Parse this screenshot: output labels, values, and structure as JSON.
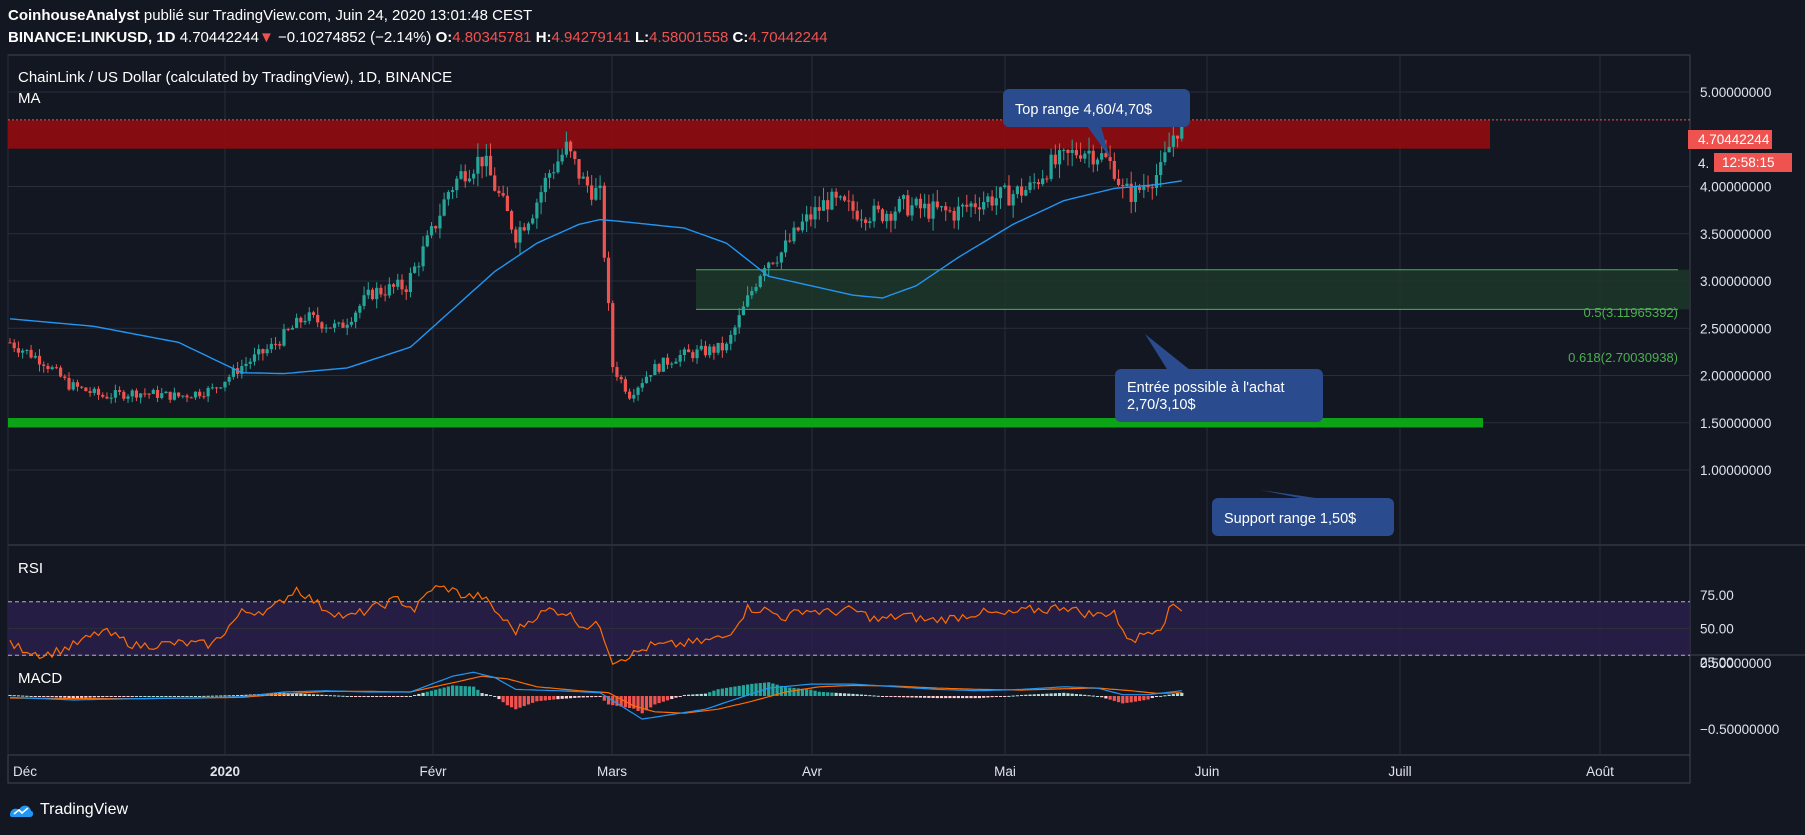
{
  "header": {
    "line1_author": "CoinhouseAnalyst",
    "line1_rest": " publié sur TradingView.com, Juin 24, 2020 13:01:48 CEST",
    "symbol": "BINANCE:LINKUSD, 1D",
    "last": "4.70442244",
    "change": "−0.10274852 (−2.14%)",
    "o_label": "O:",
    "o": "4.80345781",
    "h_label": "H:",
    "h": "4.94279141",
    "l_label": "L:",
    "l": "4.58001558",
    "c_label": "C:",
    "c": "4.70442244"
  },
  "chart_title": "ChainLink / US Dollar (calculated by TradingView), 1D, BINANCE",
  "ma_label": "MA",
  "rsi_label": "RSI",
  "macd_label": "MACD",
  "footer_brand": "TradingView",
  "colors": {
    "bg": "#131722",
    "up": "#26a69a",
    "down": "#ef5350",
    "ma": "#2196f3",
    "rsi": "#ff6d00",
    "macd": "#2196f3",
    "signal": "#ff6d00",
    "resistance": "#8b0d12",
    "support": "#0ca316",
    "fib_zone": "#1e3a2a"
  },
  "annotations": [
    {
      "id": "top",
      "text": "Top range 4,60/4,70$"
    },
    {
      "id": "entry",
      "lines": [
        "Entrée possible à l'achat",
        "2,70/3,10$"
      ]
    },
    {
      "id": "support",
      "text": "Support range 1,50$"
    }
  ],
  "fib_labels": {
    "f05": "0.5(3.11965392)",
    "f0618": "0.618(2.70030938)"
  },
  "price_badges": {
    "price": "4.70442244",
    "countdown": "12:58:15",
    "partial": "4."
  },
  "chart_data": {
    "type": "candlestick",
    "title": "ChainLink / US Dollar (calculated by TradingView), 1D, BINANCE",
    "y_axis": {
      "labels": [
        "5.00000000",
        "4.00000000",
        "3.50000000",
        "3.00000000",
        "2.50000000",
        "2.00000000",
        "1.50000000",
        "1.00000000"
      ],
      "values": [
        5.0,
        4.0,
        3.5,
        3.0,
        2.5,
        2.0,
        1.5,
        1.0
      ]
    },
    "ylim": [
      1.0,
      5.0
    ],
    "x_axis": {
      "labels": [
        "Déc",
        "2020",
        "Févr",
        "Mars",
        "Avr",
        "Mai",
        "Juin",
        "Juill",
        "Août"
      ]
    },
    "zones": {
      "resistance": [
        4.4,
        4.7
      ],
      "support": [
        1.45,
        1.55
      ],
      "fib": [
        2.70030938,
        3.11965392
      ]
    },
    "close_anchors": [
      [
        0,
        2.35
      ],
      [
        8,
        2.15
      ],
      [
        14,
        1.9
      ],
      [
        22,
        1.78
      ],
      [
        30,
        1.82
      ],
      [
        40,
        1.78
      ],
      [
        48,
        1.85
      ],
      [
        55,
        2.1
      ],
      [
        62,
        2.3
      ],
      [
        70,
        2.62
      ],
      [
        78,
        2.5
      ],
      [
        86,
        2.88
      ],
      [
        94,
        2.95
      ],
      [
        100,
        3.5
      ],
      [
        104,
        3.95
      ],
      [
        108,
        4.18
      ],
      [
        112,
        4.3
      ],
      [
        116,
        3.9
      ],
      [
        120,
        3.5
      ],
      [
        124,
        3.75
      ],
      [
        128,
        4.15
      ],
      [
        132,
        4.4
      ],
      [
        136,
        4.05
      ],
      [
        140,
        3.9
      ],
      [
        143,
        2.1
      ],
      [
        147,
        1.8
      ],
      [
        152,
        2.05
      ],
      [
        158,
        2.2
      ],
      [
        164,
        2.25
      ],
      [
        170,
        2.3
      ],
      [
        175,
        2.8
      ],
      [
        179,
        3.2
      ],
      [
        183,
        3.3
      ],
      [
        188,
        3.6
      ],
      [
        194,
        3.85
      ],
      [
        200,
        3.75
      ],
      [
        206,
        3.7
      ],
      [
        212,
        3.8
      ],
      [
        218,
        3.75
      ],
      [
        224,
        3.72
      ],
      [
        230,
        3.85
      ],
      [
        236,
        3.9
      ],
      [
        242,
        3.98
      ],
      [
        246,
        4.2
      ],
      [
        250,
        4.28
      ],
      [
        254,
        4.4
      ],
      [
        258,
        4.35
      ],
      [
        262,
        4.2
      ],
      [
        264,
        3.95
      ],
      [
        267,
        3.92
      ],
      [
        270,
        4.08
      ],
      [
        273,
        4.15
      ],
      [
        276,
        4.55
      ],
      [
        278,
        4.7
      ]
    ],
    "ma_anchors": [
      [
        0,
        2.6
      ],
      [
        20,
        2.52
      ],
      [
        40,
        2.35
      ],
      [
        55,
        2.03
      ],
      [
        65,
        2.02
      ],
      [
        80,
        2.08
      ],
      [
        95,
        2.3
      ],
      [
        105,
        2.7
      ],
      [
        115,
        3.1
      ],
      [
        125,
        3.4
      ],
      [
        135,
        3.6
      ],
      [
        140,
        3.65
      ],
      [
        145,
        3.63
      ],
      [
        160,
        3.56
      ],
      [
        170,
        3.4
      ],
      [
        180,
        3.05
      ],
      [
        190,
        2.95
      ],
      [
        200,
        2.85
      ],
      [
        207,
        2.82
      ],
      [
        215,
        2.95
      ],
      [
        225,
        3.25
      ],
      [
        238,
        3.6
      ],
      [
        250,
        3.85
      ],
      [
        262,
        3.98
      ],
      [
        272,
        4.02
      ],
      [
        278,
        4.06
      ]
    ],
    "rsi": {
      "levels": [
        75,
        50,
        25
      ],
      "upper": 70,
      "lower": 30,
      "anchors": [
        [
          0,
          38
        ],
        [
          8,
          30
        ],
        [
          14,
          36
        ],
        [
          22,
          48
        ],
        [
          30,
          37
        ],
        [
          40,
          39
        ],
        [
          48,
          38
        ],
        [
          55,
          62
        ],
        [
          62,
          64
        ],
        [
          68,
          80
        ],
        [
          74,
          66
        ],
        [
          80,
          58
        ],
        [
          86,
          65
        ],
        [
          92,
          72
        ],
        [
          96,
          64
        ],
        [
          100,
          80
        ],
        [
          104,
          80
        ],
        [
          108,
          74
        ],
        [
          112,
          74
        ],
        [
          116,
          60
        ],
        [
          120,
          48
        ],
        [
          124,
          58
        ],
        [
          128,
          64
        ],
        [
          132,
          62
        ],
        [
          136,
          52
        ],
        [
          140,
          52
        ],
        [
          143,
          26
        ],
        [
          148,
          31
        ],
        [
          152,
          37
        ],
        [
          158,
          38
        ],
        [
          164,
          40
        ],
        [
          170,
          44
        ],
        [
          175,
          65
        ],
        [
          179,
          64
        ],
        [
          184,
          58
        ],
        [
          188,
          64
        ],
        [
          194,
          62
        ],
        [
          200,
          64
        ],
        [
          206,
          56
        ],
        [
          212,
          60
        ],
        [
          218,
          56
        ],
        [
          224,
          58
        ],
        [
          230,
          62
        ],
        [
          236,
          60
        ],
        [
          242,
          64
        ],
        [
          246,
          64
        ],
        [
          250,
          67
        ],
        [
          254,
          62
        ],
        [
          258,
          60
        ],
        [
          262,
          63
        ],
        [
          264,
          46
        ],
        [
          267,
          42
        ],
        [
          270,
          48
        ],
        [
          273,
          52
        ],
        [
          276,
          68
        ],
        [
          278,
          65
        ]
      ]
    },
    "macd": {
      "levels": [
        "0.50000000",
        "−0.50000000"
      ],
      "ylim": [
        -0.5,
        0.5
      ],
      "macd_anchors": [
        [
          0,
          -0.02
        ],
        [
          15,
          -0.06
        ],
        [
          30,
          -0.04
        ],
        [
          45,
          -0.03
        ],
        [
          55,
          -0.01
        ],
        [
          65,
          0.06
        ],
        [
          75,
          0.08
        ],
        [
          85,
          0.06
        ],
        [
          95,
          0.06
        ],
        [
          105,
          0.3
        ],
        [
          110,
          0.36
        ],
        [
          115,
          0.28
        ],
        [
          120,
          0.1
        ],
        [
          130,
          0.08
        ],
        [
          140,
          0.05
        ],
        [
          145,
          -0.15
        ],
        [
          150,
          -0.35
        ],
        [
          155,
          -0.3
        ],
        [
          165,
          -0.2
        ],
        [
          172,
          -0.05
        ],
        [
          180,
          0.12
        ],
        [
          190,
          0.18
        ],
        [
          200,
          0.18
        ],
        [
          210,
          0.14
        ],
        [
          220,
          0.1
        ],
        [
          230,
          0.08
        ],
        [
          240,
          0.1
        ],
        [
          250,
          0.14
        ],
        [
          258,
          0.12
        ],
        [
          264,
          0.02
        ],
        [
          270,
          0.02
        ],
        [
          278,
          0.08
        ]
      ],
      "signal_anchors": [
        [
          0,
          -0.03
        ],
        [
          15,
          -0.04
        ],
        [
          30,
          -0.04
        ],
        [
          45,
          -0.03
        ],
        [
          55,
          -0.02
        ],
        [
          65,
          0.03
        ],
        [
          75,
          0.07
        ],
        [
          85,
          0.07
        ],
        [
          95,
          0.06
        ],
        [
          105,
          0.2
        ],
        [
          112,
          0.3
        ],
        [
          118,
          0.26
        ],
        [
          125,
          0.14
        ],
        [
          135,
          0.08
        ],
        [
          142,
          0.05
        ],
        [
          148,
          -0.15
        ],
        [
          153,
          -0.24
        ],
        [
          160,
          -0.26
        ],
        [
          168,
          -0.2
        ],
        [
          176,
          -0.08
        ],
        [
          184,
          0.06
        ],
        [
          192,
          0.14
        ],
        [
          200,
          0.16
        ],
        [
          210,
          0.15
        ],
        [
          220,
          0.12
        ],
        [
          230,
          0.1
        ],
        [
          240,
          0.09
        ],
        [
          250,
          0.11
        ],
        [
          258,
          0.12
        ],
        [
          266,
          0.08
        ],
        [
          272,
          0.04
        ],
        [
          278,
          0.05
        ]
      ]
    }
  }
}
